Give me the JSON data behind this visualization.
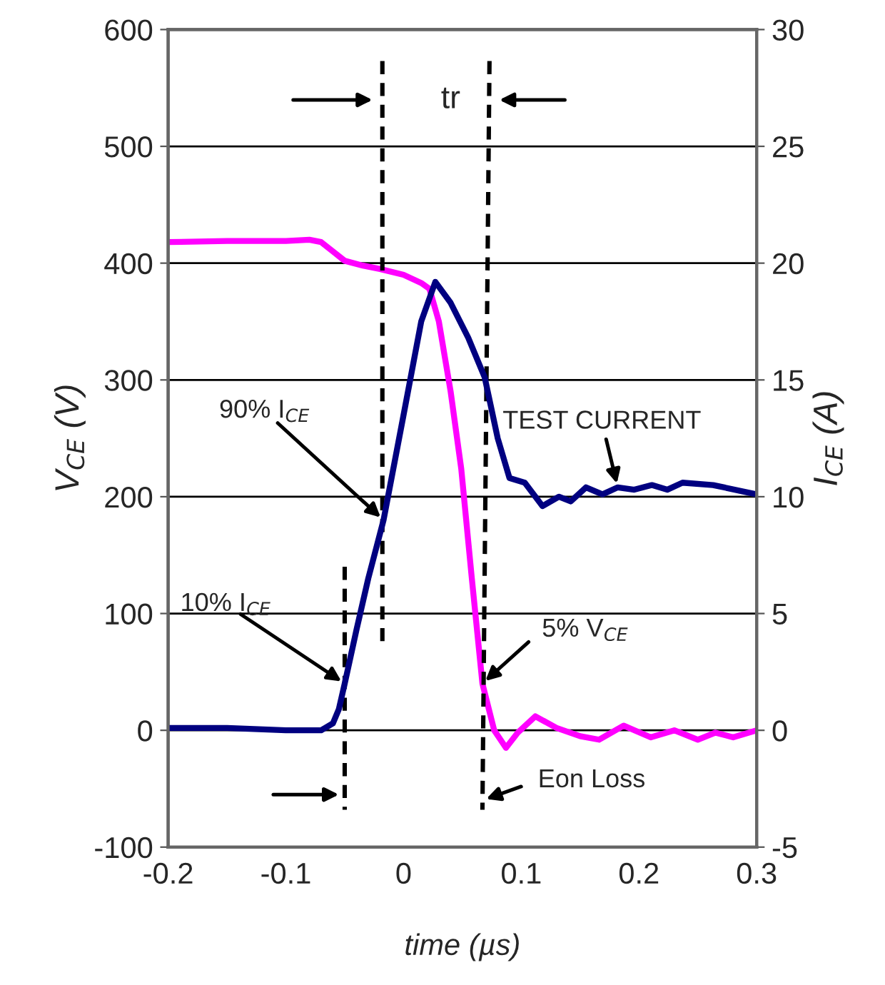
{
  "chart_data": {
    "type": "line",
    "xlabel": "time (µs)",
    "ylabel": "V$_{CE}$ (V)",
    "y2label": "I$_{CE}$ (A)",
    "xlim": [
      -0.2,
      0.3
    ],
    "xticks": [
      -0.2,
      -0.1,
      0,
      0.1,
      0.2,
      0.3
    ],
    "ylim": [
      -100,
      600
    ],
    "yticks": [
      -100,
      0,
      100,
      200,
      300,
      400,
      500,
      600
    ],
    "y2lim": [
      -5,
      30
    ],
    "y2ticks": [
      -5,
      0,
      5,
      10,
      15,
      20,
      25,
      30
    ],
    "grid": "y",
    "marker": "none",
    "series": [
      {
        "color": "#ff00ff",
        "axis": "y",
        "line_style": "solid",
        "x": [
          -0.2,
          -0.15,
          -0.1,
          -0.08,
          -0.07,
          -0.06,
          -0.05,
          -0.035,
          -0.02,
          0.0,
          0.015,
          0.022,
          0.03,
          0.04,
          0.049,
          0.058,
          0.067,
          0.077,
          0.087,
          0.097,
          0.112,
          0.13,
          0.15,
          0.166,
          0.187,
          0.21,
          0.23,
          0.25,
          0.265,
          0.28,
          0.3
        ],
        "values": [
          418,
          419,
          419,
          420,
          418,
          410,
          402,
          398,
          395,
          390,
          383,
          378,
          350,
          290,
          224,
          130,
          40,
          0,
          -15,
          -2,
          12,
          2,
          -5,
          -8,
          4,
          -6,
          0,
          -8,
          -2,
          -6,
          0
        ]
      },
      {
        "color": "#000080",
        "axis": "y2",
        "line_style": "solid",
        "x": [
          -0.2,
          -0.15,
          -0.1,
          -0.07,
          -0.06,
          -0.055,
          -0.05,
          -0.04,
          -0.03,
          -0.017,
          0.0,
          0.015,
          0.027,
          0.04,
          0.055,
          0.069,
          0.08,
          0.09,
          0.103,
          0.118,
          0.132,
          0.142,
          0.155,
          0.169,
          0.182,
          0.196,
          0.211,
          0.224,
          0.237,
          0.263,
          0.3
        ],
        "values": [
          0.1,
          0.1,
          0.0,
          0.0,
          0.3,
          0.9,
          2.0,
          4.3,
          6.5,
          9.0,
          13.5,
          17.5,
          19.2,
          18.3,
          16.8,
          15.1,
          12.5,
          10.8,
          10.6,
          9.6,
          10.0,
          9.8,
          10.4,
          10.1,
          10.4,
          10.3,
          10.5,
          10.3,
          10.6,
          10.5,
          10.1
        ]
      },
      {
        "color": "#000000",
        "axis": "y",
        "line_style": "dashed",
        "x": [
          -0.05,
          -0.05
        ],
        "values": [
          140,
          -68
        ]
      },
      {
        "color": "#000000",
        "axis": "y",
        "line_style": "dashed",
        "x": [
          -0.018,
          -0.018
        ],
        "values": [
          573,
          76
        ]
      },
      {
        "color": "#000000",
        "axis": "y",
        "line_style": "dashed",
        "x": [
          0.073,
          0.067
        ],
        "values": [
          573,
          -68
        ]
      }
    ],
    "annotations": [
      "tr",
      {
        "text": "90% I$_{CE}$",
        "x": -0.017,
        "y": 180
      },
      {
        "text": "10% I$_{CE}$",
        "x": -0.05,
        "y": 40
      },
      {
        "text": "5% V$_{CE}$",
        "x": 0.067,
        "y": 40
      },
      {
        "text": "TEST CURRENT",
        "x": 0.182,
        "y": 208
      },
      {
        "text": "Eon Loss",
        "x": 0.067,
        "y": -60
      }
    ]
  }
}
